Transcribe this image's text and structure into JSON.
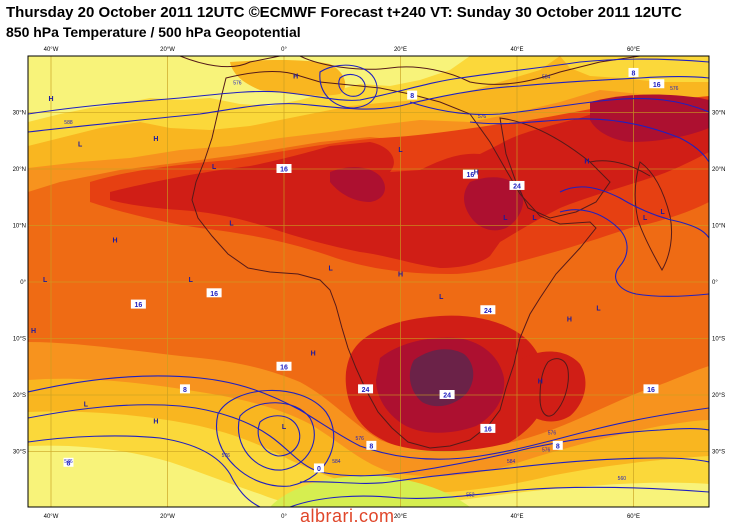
{
  "header": {
    "title_line1": "Thursday 20 October 2011 12UTC ©ECMWF Forecast t+240 VT: Sunday 30 October 2011 12UTC",
    "title_line2": "850 hPa Temperature / 500 hPa Geopotential"
  },
  "axes": {
    "lon_labels": [
      "40°W",
      "20°W",
      "0°",
      "20°E",
      "40°E",
      "60°E"
    ],
    "lat_labels_left": [
      "30°N",
      "20°N",
      "10°N",
      "0°",
      "10°S",
      "20°S",
      "30°S"
    ],
    "lat_labels_right": [
      "30°N",
      "20°N",
      "10°N",
      "0°",
      "10°S",
      "20°S",
      "30°S"
    ]
  },
  "temperature_isotherms": [
    "8",
    "16",
    "24"
  ],
  "isotherm_labels": [
    {
      "text": "16",
      "lon": 0,
      "lat": 20
    },
    {
      "text": "16",
      "lon": 32,
      "lat": 19
    },
    {
      "text": "24",
      "lon": 40,
      "lat": 17
    },
    {
      "text": "16",
      "lon": 64,
      "lat": 35
    },
    {
      "text": "8",
      "lon": 60,
      "lat": 37
    },
    {
      "text": "8",
      "lon": 22,
      "lat": 33
    },
    {
      "text": "16",
      "lon": -12,
      "lat": -2
    },
    {
      "text": "16",
      "lon": -25,
      "lat": -4
    },
    {
      "text": "24",
      "lon": 35,
      "lat": -5
    },
    {
      "text": "16",
      "lon": 0,
      "lat": -15
    },
    {
      "text": "8",
      "lon": -17,
      "lat": -19
    },
    {
      "text": "24",
      "lon": 14,
      "lat": -19
    },
    {
      "text": "24",
      "lon": 28,
      "lat": -20
    },
    {
      "text": "16",
      "lon": 35,
      "lat": -26
    },
    {
      "text": "16",
      "lon": 63,
      "lat": -19
    },
    {
      "text": "8",
      "lon": 15,
      "lat": -29
    },
    {
      "text": "8",
      "lon": -37,
      "lat": -32
    },
    {
      "text": "0",
      "lon": 6,
      "lat": -33
    },
    {
      "text": "8",
      "lon": 47,
      "lat": -29
    }
  ],
  "geopotential_labels": [
    {
      "text": "576",
      "lon": -8,
      "lat": 35
    },
    {
      "text": "588",
      "lon": -37,
      "lat": 28
    },
    {
      "text": "584",
      "lon": 45,
      "lat": 36
    },
    {
      "text": "576",
      "lon": 67,
      "lat": 34
    },
    {
      "text": "576",
      "lon": 34,
      "lat": 29
    },
    {
      "text": "576",
      "lon": -37,
      "lat": -32
    },
    {
      "text": "576",
      "lon": 13,
      "lat": -28
    },
    {
      "text": "576",
      "lon": 46,
      "lat": -27
    },
    {
      "text": "584",
      "lon": 9,
      "lat": -32
    },
    {
      "text": "584",
      "lon": 39,
      "lat": -32
    },
    {
      "text": "576",
      "lon": 45,
      "lat": -30
    },
    {
      "text": "560",
      "lon": 58,
      "lat": -35
    },
    {
      "text": "552",
      "lon": 32,
      "lat": -38
    },
    {
      "text": "576",
      "lon": -10,
      "lat": -31
    }
  ],
  "pressure_centers": [
    {
      "text": "H",
      "lon": -40,
      "lat": 32
    },
    {
      "text": "H",
      "lon": 2,
      "lat": 36
    },
    {
      "text": "L",
      "lon": -35,
      "lat": 24
    },
    {
      "text": "H",
      "lon": -22,
      "lat": 25
    },
    {
      "text": "L",
      "lon": -12,
      "lat": 20
    },
    {
      "text": "L",
      "lon": 20,
      "lat": 23
    },
    {
      "text": "H",
      "lon": 33,
      "lat": 19
    },
    {
      "text": "H",
      "lon": 52,
      "lat": 21
    },
    {
      "text": "L",
      "lon": 38,
      "lat": 11
    },
    {
      "text": "L",
      "lon": 43,
      "lat": 11
    },
    {
      "text": "L",
      "lon": 62,
      "lat": 11
    },
    {
      "text": "L",
      "lon": 65,
      "lat": 12
    },
    {
      "text": "L",
      "lon": -9,
      "lat": 10
    },
    {
      "text": "H",
      "lon": -29,
      "lat": 7
    },
    {
      "text": "L",
      "lon": 8,
      "lat": 2
    },
    {
      "text": "H",
      "lon": 20,
      "lat": 1
    },
    {
      "text": "L",
      "lon": -16,
      "lat": 0
    },
    {
      "text": "L",
      "lon": -41,
      "lat": 0
    },
    {
      "text": "L",
      "lon": 27,
      "lat": -3
    },
    {
      "text": "H",
      "lon": 49,
      "lat": -7
    },
    {
      "text": "L",
      "lon": 54,
      "lat": -5
    },
    {
      "text": "H",
      "lon": -43,
      "lat": -9
    },
    {
      "text": "H",
      "lon": 5,
      "lat": -13
    },
    {
      "text": "H",
      "lon": 44,
      "lat": -18
    },
    {
      "text": "L",
      "lon": -34,
      "lat": -22
    },
    {
      "text": "H",
      "lon": -22,
      "lat": -25
    },
    {
      "text": "L",
      "lon": 0,
      "lat": -26
    }
  ],
  "watermark": "albrari.com",
  "colors": {
    "pale_yellow": "#f8f37a",
    "yellow": "#fbd83a",
    "gold": "#f9b620",
    "light_orange": "#f7931e",
    "orange": "#ef6b14",
    "red_orange": "#e64012",
    "red": "#d01e16",
    "dark_red": "#ad1030",
    "maroon": "#6b2248",
    "green_cold": "#d6ee50",
    "geopotential_line": "#2020c0",
    "coast_line": "#551a1a",
    "grid_line": "#c8a020"
  }
}
